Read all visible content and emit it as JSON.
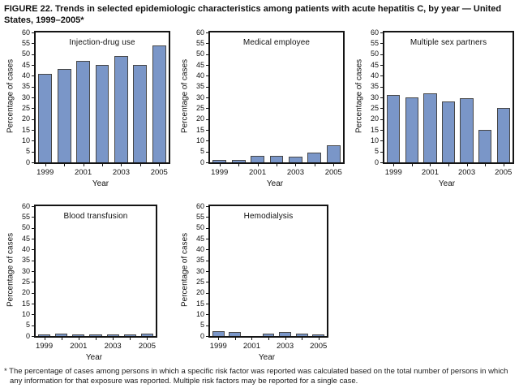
{
  "figure": {
    "title": "FIGURE 22. Trends in selected epidemiologic characteristics among patients with acute hepatitis C, by year — United States, 1999–2005*",
    "footnote": "* The percentage of cases among persons in which a specific risk factor was reported was calculated based on the total number of persons in which any information for that exposure was reported. Multiple risk factors may be reported for a single case."
  },
  "colors": {
    "bar_fill": "#7A96C8",
    "bar_border": "#474747",
    "axis_frame": "#141414",
    "text": "#000000",
    "background": "#FFFFFF"
  },
  "chart_data": [
    {
      "type": "bar",
      "title": "Injection-drug use",
      "xlabel": "Year",
      "ylabel": "Percentage of cases",
      "categories": [
        1999,
        2000,
        2001,
        2002,
        2003,
        2004,
        2005
      ],
      "values": [
        41,
        43,
        47,
        45,
        49,
        45,
        54
      ],
      "ylim": [
        0,
        60
      ],
      "ytick_step": 5,
      "xtick_labels_shown": [
        "1999",
        "2001",
        "2003",
        "2005"
      ],
      "grid": false,
      "legend": "none"
    },
    {
      "type": "bar",
      "title": "Medical employee",
      "xlabel": "Year",
      "ylabel": "Percentage of cases",
      "categories": [
        1999,
        2000,
        2001,
        2002,
        2003,
        2004,
        2005
      ],
      "values": [
        1,
        1,
        3,
        3,
        2.5,
        4.5,
        8
      ],
      "ylim": [
        0,
        60
      ],
      "ytick_step": 5,
      "xtick_labels_shown": [
        "1999",
        "2001",
        "2003",
        "2005"
      ],
      "grid": false,
      "legend": "none"
    },
    {
      "type": "bar",
      "title": "Multiple sex partners",
      "xlabel": "Year",
      "ylabel": "Percentage of cases",
      "categories": [
        1999,
        2000,
        2001,
        2002,
        2003,
        2004,
        2005
      ],
      "values": [
        31,
        30,
        32,
        28,
        29.5,
        15,
        25
      ],
      "ylim": [
        0,
        60
      ],
      "ytick_step": 5,
      "xtick_labels_shown": [
        "1999",
        "2001",
        "2003",
        "2005"
      ],
      "grid": false,
      "legend": "none"
    },
    {
      "type": "bar",
      "title": "Blood transfusion",
      "xlabel": "Year",
      "ylabel": "Percentage of cases",
      "categories": [
        1999,
        2000,
        2001,
        2002,
        2003,
        2004,
        2005
      ],
      "values": [
        0.7,
        1,
        0.3,
        0.4,
        0.7,
        0.6,
        1
      ],
      "ylim": [
        0,
        60
      ],
      "ytick_step": 5,
      "xtick_labels_shown": [
        "1999",
        "2001",
        "2003",
        "2005"
      ],
      "grid": false,
      "legend": "none"
    },
    {
      "type": "bar",
      "title": "Hemodialysis",
      "xlabel": "Year",
      "ylabel": "Percentage of cases",
      "categories": [
        1999,
        2000,
        2001,
        2002,
        2003,
        2004,
        2005
      ],
      "values": [
        2.2,
        2,
        0,
        1.2,
        2,
        1.3,
        0.4
      ],
      "ylim": [
        0,
        60
      ],
      "ytick_step": 5,
      "xtick_labels_shown": [
        "1999",
        "2001",
        "2003",
        "2005"
      ],
      "grid": false,
      "legend": "none"
    }
  ]
}
